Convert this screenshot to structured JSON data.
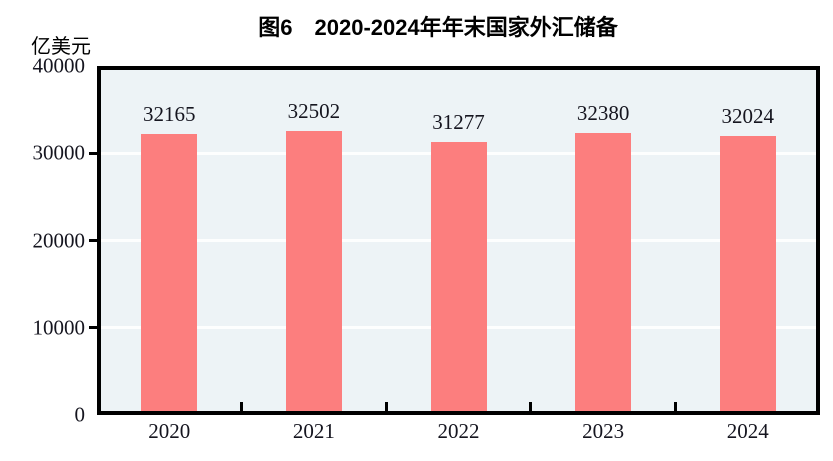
{
  "title": "图6　2020-2024年年末国家外汇储备",
  "unit_label": "亿美元",
  "chart_data": {
    "type": "bar",
    "title": "图6　2020-2024年年末国家外汇储备",
    "categories": [
      "2020",
      "2021",
      "2022",
      "2023",
      "2024"
    ],
    "values": [
      32165,
      32502,
      31277,
      32380,
      32024
    ],
    "xlabel": "",
    "ylabel": "亿美元",
    "ylim": [
      0,
      40000
    ],
    "yticks": [
      0,
      10000,
      20000,
      30000,
      40000
    ],
    "grid": true,
    "legend_position": "none",
    "bar_color": "#fc7e7e",
    "plot_background": "#edf3f6",
    "gridline_color": "#fdfefe",
    "axis_color": "#000000",
    "label_color": "#15151f"
  }
}
